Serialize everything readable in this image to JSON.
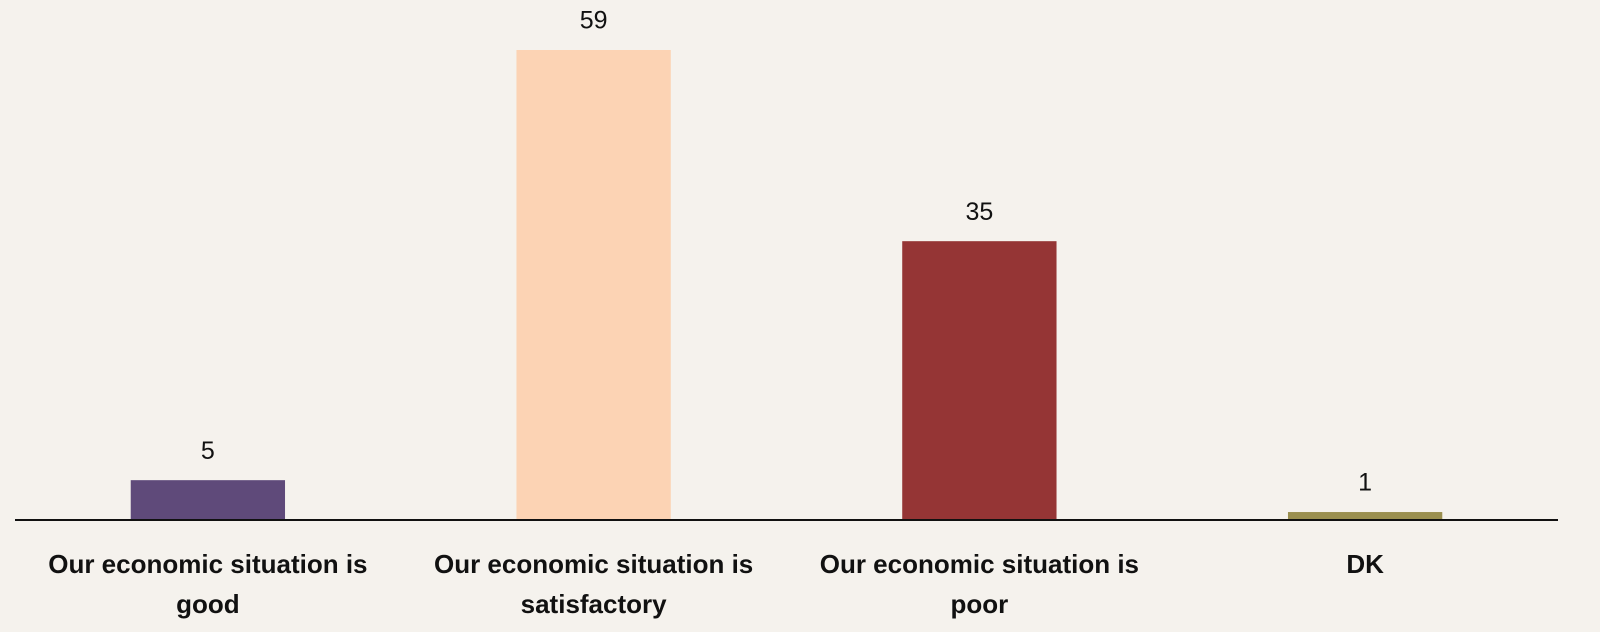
{
  "chart_data": {
    "type": "bar",
    "categories": [
      "Our economic situation is good",
      "Our economic situation is satisfactory",
      "Our economic situation is poor",
      "DK"
    ],
    "values": [
      5,
      59,
      35,
      1
    ],
    "colors": [
      "#5f4a7a",
      "#fcd3b4",
      "#953535",
      "#9a8f4f"
    ]
  }
}
